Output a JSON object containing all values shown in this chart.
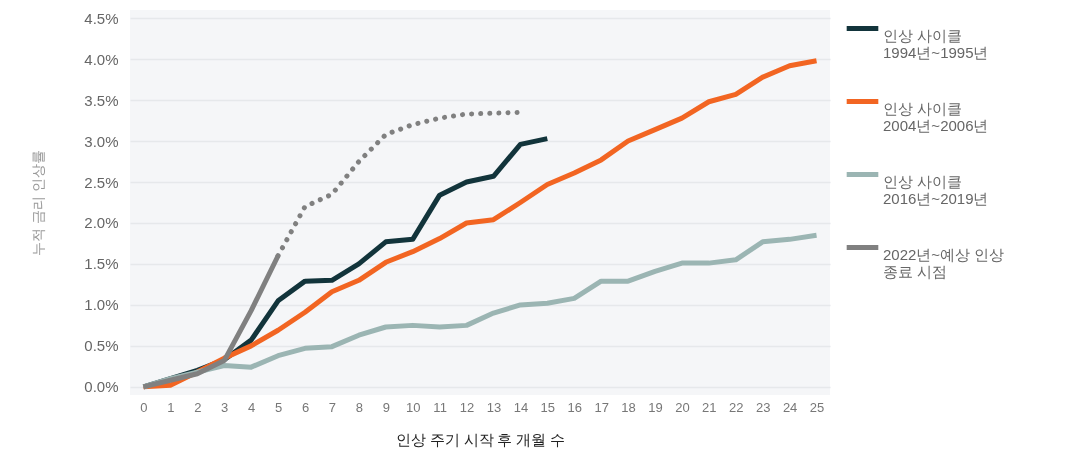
{
  "chart_data": {
    "type": "line",
    "xlabel": "인상 주기 시작 후 개월 수",
    "ylabel": "누적 금리 인상률",
    "x": [
      0,
      1,
      2,
      3,
      4,
      5,
      6,
      7,
      8,
      9,
      10,
      11,
      12,
      13,
      14,
      15,
      16,
      17,
      18,
      19,
      20,
      21,
      22,
      23,
      24,
      25
    ],
    "series": [
      {
        "name": "인상 사이클 1994년~1995년",
        "color": "#12343b",
        "x": [
          0,
          1,
          2,
          3,
          4,
          5,
          6,
          7,
          8,
          9,
          10,
          11,
          12,
          13,
          14,
          15
        ],
        "values": [
          0,
          0.1,
          0.2,
          0.33,
          0.57,
          1.05,
          1.29,
          1.3,
          1.5,
          1.77,
          1.8,
          2.34,
          2.5,
          2.57,
          2.96,
          3.03
        ]
      },
      {
        "name": "인상 사이클 2004년~2006년",
        "color": "#f26522",
        "values": [
          0,
          0.02,
          0.18,
          0.35,
          0.5,
          0.69,
          0.91,
          1.16,
          1.3,
          1.52,
          1.65,
          1.81,
          2.0,
          2.04,
          2.25,
          2.47,
          2.61,
          2.77,
          3.0,
          3.14,
          3.28,
          3.48,
          3.57,
          3.78,
          3.92,
          3.98
        ]
      },
      {
        "name": "인상 사이클 2016년~2019년",
        "color": "#9bb5b3",
        "values": [
          0,
          0.1,
          0.18,
          0.26,
          0.24,
          0.38,
          0.47,
          0.49,
          0.63,
          0.73,
          0.75,
          0.73,
          0.75,
          0.9,
          1.0,
          1.02,
          1.08,
          1.29,
          1.29,
          1.41,
          1.51,
          1.51,
          1.55,
          1.77,
          1.8,
          1.85
        ]
      },
      {
        "name": "2022년~예상 인상 종료 시점",
        "color": "#808080",
        "x": [
          0,
          1,
          2,
          3,
          4,
          5
        ],
        "values": [
          0,
          0.08,
          0.16,
          0.32,
          0.93,
          1.6
        ]
      },
      {
        "color": "#808080",
        "line_style": "dotted",
        "x": [
          5,
          6,
          7,
          8,
          9,
          10,
          11,
          12,
          13,
          14
        ],
        "values": [
          1.6,
          2.2,
          2.35,
          2.75,
          3.08,
          3.2,
          3.28,
          3.33,
          3.34,
          3.35
        ]
      }
    ],
    "xlim": [
      -0.5,
      25.5
    ],
    "xticks": [
      0,
      1,
      2,
      3,
      4,
      5,
      6,
      7,
      8,
      9,
      10,
      11,
      12,
      13,
      14,
      15,
      16,
      17,
      18,
      19,
      20,
      21,
      22,
      23,
      24,
      25
    ],
    "ylim": [
      -0.1,
      4.6
    ],
    "yticks": [
      {
        "value": 0,
        "label": "0.0%"
      },
      {
        "value": 0.5,
        "label": "0.5%"
      },
      {
        "value": 1,
        "label": "1.0%"
      },
      {
        "value": 1.5,
        "label": "1.5%"
      },
      {
        "value": 2,
        "label": "2.0%"
      },
      {
        "value": 2.5,
        "label": "2.5%"
      },
      {
        "value": 3,
        "label": "3.0%"
      },
      {
        "value": 3.5,
        "label": "3.5%"
      },
      {
        "value": 4,
        "label": "4.0%"
      },
      {
        "value": 4.5,
        "label": "4.5%"
      }
    ],
    "grid": "y",
    "legend": "right",
    "line_style": "solid",
    "marker": "none"
  }
}
